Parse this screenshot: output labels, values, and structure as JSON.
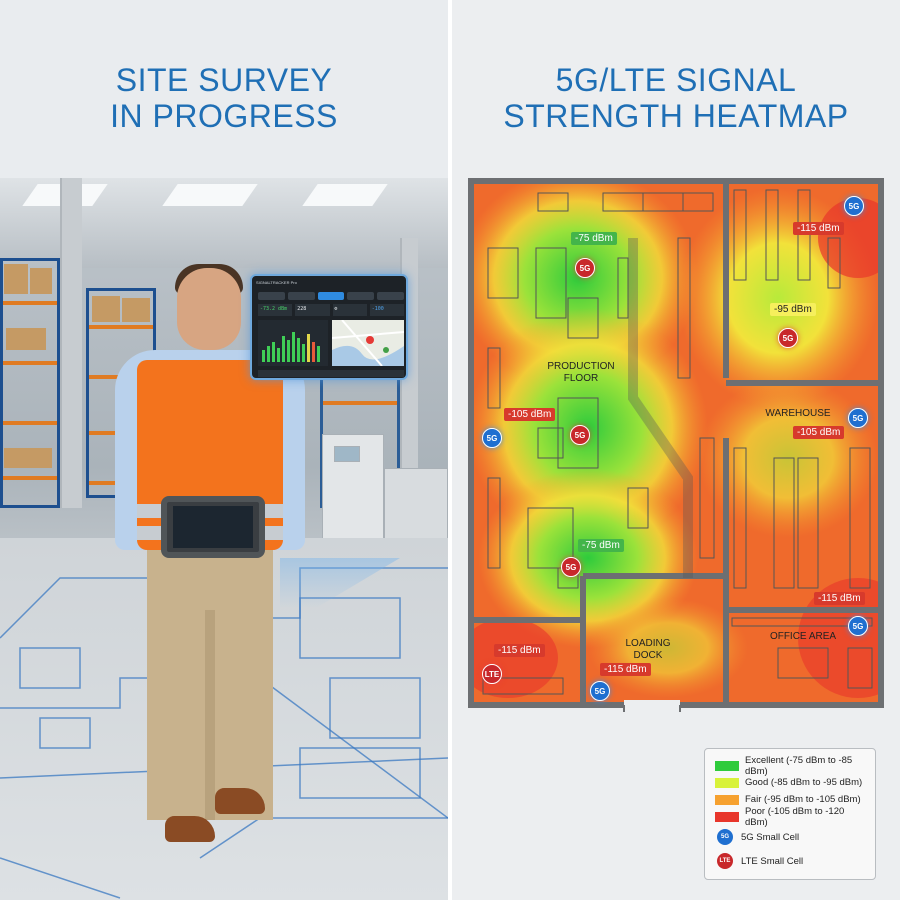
{
  "left_panel": {
    "title_line1": "SITE SURVEY",
    "title_line2": "IN PROGRESS",
    "tablet_screen": {
      "app_title": "SIGNALTRACKER Pro",
      "stat_signal": "-73.2 dBm",
      "stat_count": "228",
      "stat_rsrq": "-100"
    }
  },
  "right_panel": {
    "title_line1": "5G/LTE SIGNAL",
    "title_line2": "STRENGTH HEATMAP",
    "rooms": {
      "production_floor": "PRODUCTION\nFLOOR",
      "warehouse": "WAREHOUSE",
      "loading_dock": "LOADING\nDOCK",
      "office_area": "OFFICE AREA"
    },
    "readings": [
      {
        "id": "prod-top",
        "value": "-75 dBm",
        "level": "green"
      },
      {
        "id": "warehouse-topright",
        "value": "-115 dBm",
        "level": "red"
      },
      {
        "id": "warehouse-center",
        "value": "-95 dBm",
        "level": "yellow"
      },
      {
        "id": "prod-left",
        "value": "-105 dBm",
        "level": "red"
      },
      {
        "id": "warehouse-right",
        "value": "-105 dBm",
        "level": "red"
      },
      {
        "id": "prod-bottom",
        "value": "-75 dBm",
        "level": "green"
      },
      {
        "id": "office-right",
        "value": "-115 dBm",
        "level": "red"
      },
      {
        "id": "bottomleft-room",
        "value": "-115 dBm",
        "level": "red"
      },
      {
        "id": "dock",
        "value": "-115 dBm",
        "level": "red"
      }
    ],
    "cells": {
      "g5_label": "5G",
      "lte_label": "LTE"
    },
    "legend": {
      "excellent": "Excellent (-75 dBm to -85 dBm)",
      "good": "Good (-85 dBm to -95 dBm)",
      "fair": "Fair (-95 dBm to -105 dBm)",
      "poor": "Poor (-105 dBm to -120 dBm)",
      "g5_cell": "5G Small Cell",
      "lte_cell": "LTE Small Cell"
    },
    "colors": {
      "excellent": "#2fcb3c",
      "good": "#d8f23a",
      "fair": "#f6a12f",
      "poor": "#e8362b",
      "cell_5g": "#1f6fd0",
      "cell_lte": "#c8282b",
      "title": "#1f6fb5"
    }
  }
}
